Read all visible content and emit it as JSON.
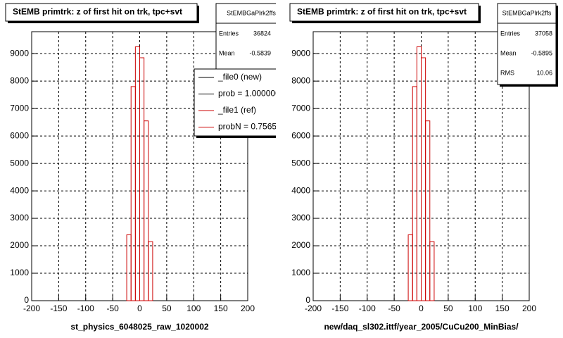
{
  "charts": [
    {
      "type": "histogram",
      "title": "StEMB primtrk: z of first hit on trk, tpc+svt",
      "xlabel": "st_physics_6048025_raw_1020002",
      "bins": [
        -24,
        -16,
        -8,
        0,
        8,
        16,
        24
      ],
      "values": [
        2400,
        7800,
        9250,
        8850,
        6550,
        2150
      ],
      "color": "#cc0000",
      "xlim": [
        -200,
        200
      ],
      "xticks": [
        -200,
        -150,
        -100,
        -50,
        0,
        50,
        100,
        150,
        200
      ],
      "ylim": [
        0,
        9800
      ],
      "yticks": [
        0,
        1000,
        2000,
        3000,
        4000,
        5000,
        6000,
        7000,
        8000,
        9000
      ],
      "grid": true,
      "stats": {
        "name": "StEMBGaPlrk2ffs",
        "rows": [
          {
            "label": "Entries",
            "value": "36824"
          },
          {
            "label": "Mean",
            "value": "-0.5839"
          }
        ]
      },
      "legend": [
        {
          "text": "_file0 (new)",
          "color": "#000000"
        },
        {
          "text": "prob = 1.000000",
          "color": "#000000"
        },
        {
          "text": "_file1 (ref)",
          "color": "#cc0000"
        },
        {
          "text": "probN = 0.75656",
          "color": "#cc0000"
        }
      ]
    },
    {
      "type": "histogram",
      "title": "StEMB primtrk: z of first hit on trk, tpc+svt",
      "xlabel": "new/daq_sl302.ittf/year_2005/CuCu200_MinBias/",
      "bins": [
        -24,
        -16,
        -8,
        0,
        8,
        16,
        24
      ],
      "values": [
        2400,
        7800,
        9250,
        8850,
        6550,
        2150
      ],
      "color": "#cc0000",
      "xlim": [
        -200,
        200
      ],
      "xticks": [
        -200,
        -150,
        -100,
        -50,
        0,
        50,
        100,
        150,
        200
      ],
      "ylim": [
        0,
        9800
      ],
      "yticks": [
        0,
        1000,
        2000,
        3000,
        4000,
        5000,
        6000,
        7000,
        8000,
        9000
      ],
      "grid": true,
      "stats": {
        "name": "StEMBGaPlrk2ffs",
        "rows": [
          {
            "label": "Entries",
            "value": "37058"
          },
          {
            "label": "Mean",
            "value": "-0.5895"
          },
          {
            "label": "RMS",
            "value": "10.06"
          }
        ]
      }
    }
  ]
}
